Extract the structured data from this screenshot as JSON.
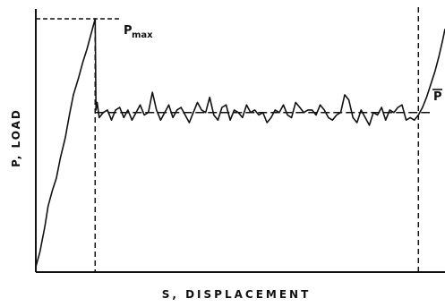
{
  "chart_data": {
    "type": "line",
    "title": "",
    "xlabel": "S, DISPLACEMENT",
    "ylabel": "P, LOAD",
    "grid": false,
    "legend": "none",
    "axes": {
      "show_ticks": false,
      "show_tick_labels": false
    },
    "xlim": [
      0,
      100
    ],
    "ylim": [
      0,
      100
    ],
    "annotations": {
      "pmax_symbol": "P",
      "pmax_subscript": "max",
      "pmean_symbol": "P",
      "pmean_overbar": true
    },
    "reference_lines": {
      "p_max": 100,
      "p_mean": 63,
      "x_at_p_max": 14.5,
      "x_end_of_plateau": 93.5
    },
    "series": [
      {
        "values_xy": [
          [
            0.0,
            2.0
          ],
          [
            1.0,
            8.0
          ],
          [
            2.2,
            18.0
          ],
          [
            3.0,
            26.0
          ],
          [
            4.0,
            32.0
          ],
          [
            5.0,
            37.0
          ],
          [
            6.0,
            45.0
          ],
          [
            7.2,
            53.0
          ],
          [
            8.2,
            62.0
          ],
          [
            9.2,
            70.0
          ],
          [
            10.5,
            77.0
          ],
          [
            11.5,
            83.0
          ],
          [
            12.5,
            88.0
          ],
          [
            13.5,
            94.0
          ],
          [
            14.5,
            100.0
          ],
          [
            14.7,
            64.0
          ],
          [
            15.0,
            67.0
          ],
          [
            15.5,
            61.0
          ],
          [
            16.5,
            63.0
          ],
          [
            17.5,
            64.0
          ],
          [
            18.5,
            60.0
          ],
          [
            19.5,
            64.0
          ],
          [
            20.5,
            65.0
          ],
          [
            21.5,
            61.0
          ],
          [
            22.5,
            64.0
          ],
          [
            23.5,
            60.0
          ],
          [
            24.5,
            63.0
          ],
          [
            25.5,
            66.0
          ],
          [
            26.5,
            62.0
          ],
          [
            27.5,
            63.0
          ],
          [
            28.5,
            71.0
          ],
          [
            29.5,
            64.0
          ],
          [
            30.5,
            60.0
          ],
          [
            31.5,
            63.0
          ],
          [
            32.5,
            66.0
          ],
          [
            33.5,
            61.0
          ],
          [
            34.5,
            64.0
          ],
          [
            35.5,
            65.0
          ],
          [
            36.5,
            62.0
          ],
          [
            37.5,
            59.0
          ],
          [
            38.5,
            63.0
          ],
          [
            39.5,
            67.0
          ],
          [
            40.5,
            64.0
          ],
          [
            41.5,
            63.0
          ],
          [
            42.5,
            69.0
          ],
          [
            43.5,
            62.0
          ],
          [
            44.5,
            60.0
          ],
          [
            45.5,
            65.0
          ],
          [
            46.5,
            66.0
          ],
          [
            47.5,
            60.0
          ],
          [
            48.5,
            64.0
          ],
          [
            49.5,
            63.0
          ],
          [
            50.5,
            61.0
          ],
          [
            51.5,
            66.0
          ],
          [
            52.5,
            63.0
          ],
          [
            53.5,
            64.0
          ],
          [
            54.5,
            62.0
          ],
          [
            55.5,
            63.0
          ],
          [
            56.5,
            59.0
          ],
          [
            57.5,
            61.0
          ],
          [
            58.5,
            64.0
          ],
          [
            59.5,
            63.0
          ],
          [
            60.5,
            66.0
          ],
          [
            61.5,
            62.0
          ],
          [
            62.5,
            61.0
          ],
          [
            63.5,
            67.0
          ],
          [
            64.5,
            65.0
          ],
          [
            65.5,
            63.0
          ],
          [
            66.5,
            64.0
          ],
          [
            67.5,
            64.0
          ],
          [
            68.5,
            62.0
          ],
          [
            69.5,
            66.0
          ],
          [
            70.5,
            64.0
          ],
          [
            71.5,
            61.0
          ],
          [
            72.5,
            60.0
          ],
          [
            73.5,
            62.0
          ],
          [
            74.5,
            63.0
          ],
          [
            75.5,
            70.0
          ],
          [
            76.5,
            68.0
          ],
          [
            77.5,
            61.0
          ],
          [
            78.5,
            59.0
          ],
          [
            79.5,
            64.0
          ],
          [
            80.5,
            61.0
          ],
          [
            81.5,
            58.0
          ],
          [
            82.5,
            63.0
          ],
          [
            83.5,
            62.0
          ],
          [
            84.5,
            65.0
          ],
          [
            85.5,
            60.0
          ],
          [
            86.5,
            64.0
          ],
          [
            87.5,
            63.0
          ],
          [
            88.5,
            65.0
          ],
          [
            89.5,
            66.0
          ],
          [
            90.5,
            60.0
          ],
          [
            91.5,
            61.0
          ],
          [
            92.5,
            60.0
          ],
          [
            93.5,
            62.0
          ],
          [
            94.5,
            65.0
          ],
          [
            95.5,
            69.0
          ],
          [
            96.5,
            74.0
          ],
          [
            97.5,
            79.0
          ],
          [
            98.5,
            85.0
          ],
          [
            99.5,
            92.0
          ],
          [
            100.0,
            96.0
          ]
        ]
      }
    ]
  }
}
